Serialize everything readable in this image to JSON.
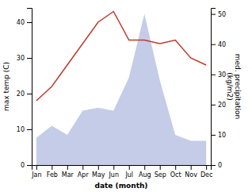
{
  "chart_data": {
    "type": "line",
    "xlabel": "date (month)",
    "ylabel": "max temp (C)",
    "y2label": "med. precipitation\n(kg/m2)",
    "categories": [
      "Jan",
      "Feb",
      "Mar",
      "Apr",
      "May",
      "Jun",
      "Jul",
      "Aug",
      "Sep",
      "Oct",
      "Nov",
      "Dec"
    ],
    "series": [
      {
        "type": "area",
        "axis": "y2",
        "color": "#c5cce8",
        "values": [
          9,
          13,
          10,
          18,
          19,
          18,
          29,
          50,
          28,
          10,
          8,
          8
        ]
      },
      {
        "type": "line",
        "color": "#c0392b",
        "values": [
          18,
          22,
          28,
          34,
          40,
          43,
          35,
          35,
          34,
          35,
          30,
          28
        ]
      }
    ],
    "ylim": [
      0,
      44
    ],
    "yticks": [
      0,
      10,
      20,
      30,
      40
    ],
    "y2lim": [
      0,
      52
    ],
    "y2ticks": [
      0,
      10,
      20,
      30,
      40,
      50
    ],
    "grid": false
  }
}
